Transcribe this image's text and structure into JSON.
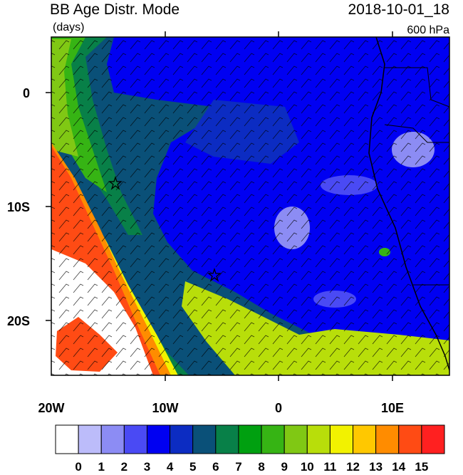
{
  "header": {
    "title": "BB Age Distr. Mode",
    "units": "(days)",
    "time": "2018-10-01_18",
    "level": "600 hPa"
  },
  "axes": {
    "x_labels": [
      "20W",
      "10W",
      "0",
      "10E"
    ],
    "y_labels": [
      "0",
      "10S",
      "20S"
    ]
  },
  "colorbar": {
    "labels": [
      0,
      1,
      2,
      3,
      4,
      5,
      6,
      7,
      8,
      9,
      10,
      11,
      12,
      13,
      14,
      15
    ],
    "colors": [
      "#ffffff",
      "#bcbcfa",
      "#8c8cf4",
      "#4a4af4",
      "#0000f2",
      "#0c2cc2",
      "#0a5078",
      "#088048",
      "#00a010",
      "#36b414",
      "#80c814",
      "#b8de0a",
      "#f2f200",
      "#ffc800",
      "#ff8c00",
      "#ff4b14",
      "#ff2020"
    ]
  }
}
